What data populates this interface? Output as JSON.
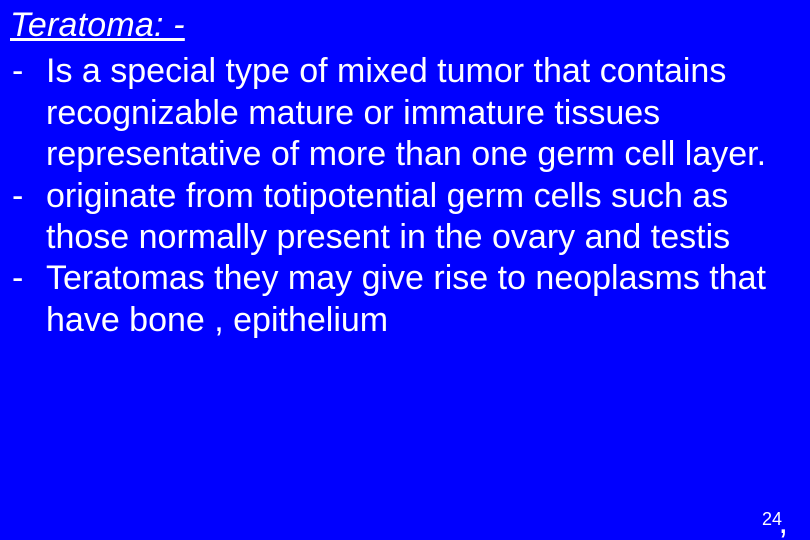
{
  "background_color": "#0000ff",
  "text_color": "#ffffff",
  "font_family": "Arial",
  "title": "Teratoma: -",
  "title_fontsize": 34,
  "title_style": "italic underline",
  "body_fontsize": 34,
  "bullets": [
    {
      "dash": "-",
      "text": "Is a special type of mixed tumor that contains recognizable mature or immature tissues representative of more than one germ cell layer."
    },
    {
      "dash": "-",
      "text": "originate from totipotential germ cells such as those normally present in the ovary and testis"
    },
    {
      "dash": "-",
      "text": "Teratomas they may give  rise  to neoplasms that have  bone , epithelium"
    }
  ],
  "page_number": "24",
  "trailing_char": ","
}
